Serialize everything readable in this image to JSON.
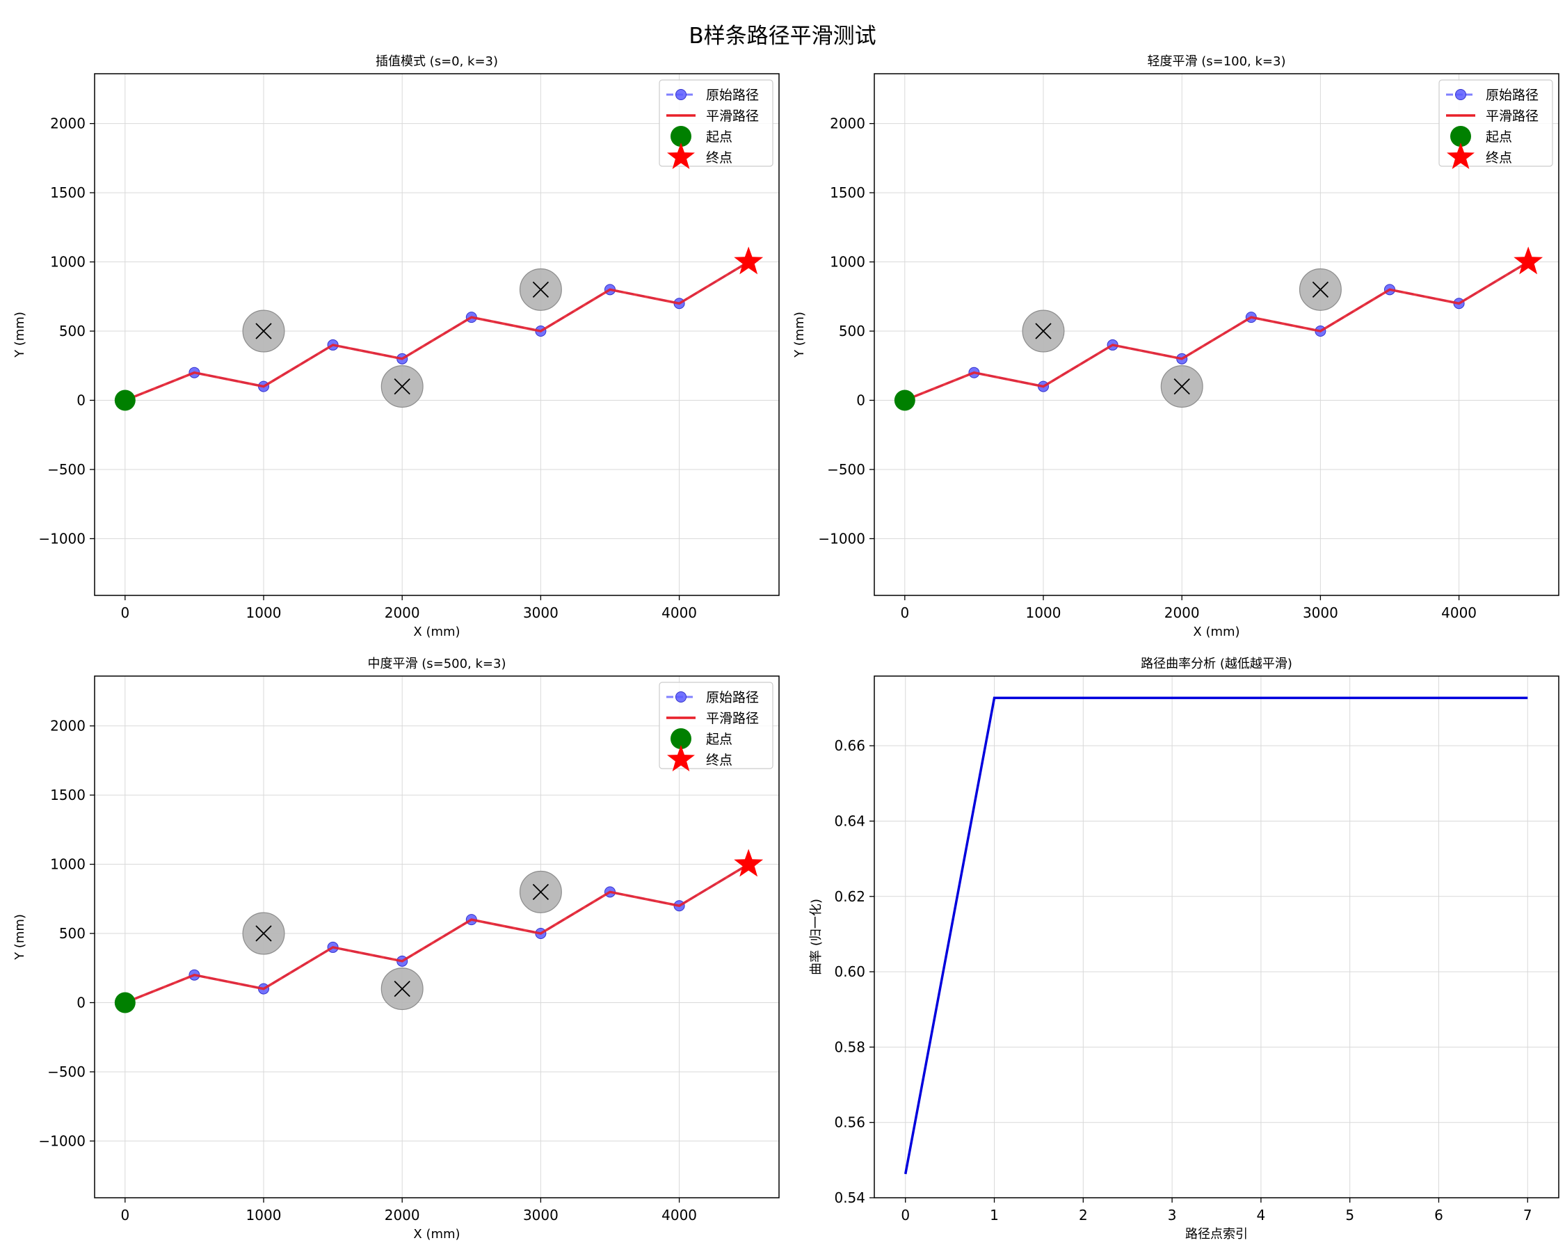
{
  "figure": {
    "title": "B样条路径平滑测试"
  },
  "colors": {
    "original": "#5555ff",
    "original_marker": "#5a5aff",
    "smoothed": "#e8202a",
    "start": "#008000",
    "end": "#ff0000",
    "obstacle_fill": "#b5b5b5",
    "curvature_line": "#0000dd"
  },
  "legend": {
    "original": "原始路径",
    "smoothed": "平滑路径",
    "start": "起点",
    "end": "终点"
  },
  "chart_data": [
    {
      "type": "line",
      "title": "插值模式 (s=0, k=3)",
      "xlabel": "X (mm)",
      "ylabel": "Y (mm)",
      "xlim": [
        -220,
        4720
      ],
      "ylim": [
        -1410,
        2360
      ],
      "xticks": [
        0,
        1000,
        2000,
        3000,
        4000
      ],
      "yticks": [
        -1000,
        -500,
        0,
        500,
        1000,
        1500,
        2000
      ],
      "grid": true,
      "legend_position": "top-right",
      "series": [
        {
          "name": "原始路径",
          "x": [
            0,
            500,
            1000,
            1500,
            2000,
            2500,
            3000,
            3500,
            4000,
            4500
          ],
          "y": [
            0,
            200,
            100,
            400,
            300,
            600,
            500,
            800,
            700,
            1000
          ]
        },
        {
          "name": "平滑路径",
          "x": [
            0,
            500,
            1000,
            1500,
            2000,
            2500,
            3000,
            3500,
            4000,
            4500
          ],
          "y": [
            0,
            200,
            100,
            400,
            300,
            600,
            500,
            800,
            700,
            1000
          ]
        }
      ],
      "start": {
        "x": 0,
        "y": 0
      },
      "end": {
        "x": 4500,
        "y": 1000
      },
      "obstacles": [
        {
          "x": 1000,
          "y": 500,
          "r": 150
        },
        {
          "x": 2000,
          "y": 100,
          "r": 150
        },
        {
          "x": 3000,
          "y": 800,
          "r": 150
        }
      ]
    },
    {
      "type": "line",
      "title": "轻度平滑 (s=100, k=3)",
      "xlabel": "X (mm)",
      "ylabel": "Y (mm)",
      "xlim": [
        -220,
        4720
      ],
      "ylim": [
        -1410,
        2360
      ],
      "xticks": [
        0,
        1000,
        2000,
        3000,
        4000
      ],
      "yticks": [
        -1000,
        -500,
        0,
        500,
        1000,
        1500,
        2000
      ],
      "grid": true,
      "legend_position": "top-right",
      "series": [
        {
          "name": "原始路径",
          "x": [
            0,
            500,
            1000,
            1500,
            2000,
            2500,
            3000,
            3500,
            4000,
            4500
          ],
          "y": [
            0,
            200,
            100,
            400,
            300,
            600,
            500,
            800,
            700,
            1000
          ]
        },
        {
          "name": "平滑路径",
          "x": [
            0,
            500,
            1000,
            1500,
            2000,
            2500,
            3000,
            3500,
            4000,
            4500
          ],
          "y": [
            0,
            200,
            100,
            400,
            300,
            600,
            500,
            800,
            700,
            1000
          ]
        }
      ],
      "start": {
        "x": 0,
        "y": 0
      },
      "end": {
        "x": 4500,
        "y": 1000
      },
      "obstacles": [
        {
          "x": 1000,
          "y": 500,
          "r": 150
        },
        {
          "x": 2000,
          "y": 100,
          "r": 150
        },
        {
          "x": 3000,
          "y": 800,
          "r": 150
        }
      ]
    },
    {
      "type": "line",
      "title": "中度平滑 (s=500, k=3)",
      "xlabel": "X (mm)",
      "ylabel": "Y (mm)",
      "xlim": [
        -220,
        4720
      ],
      "ylim": [
        -1410,
        2360
      ],
      "xticks": [
        0,
        1000,
        2000,
        3000,
        4000
      ],
      "yticks": [
        -1000,
        -500,
        0,
        500,
        1000,
        1500,
        2000
      ],
      "grid": true,
      "legend_position": "top-right",
      "series": [
        {
          "name": "原始路径",
          "x": [
            0,
            500,
            1000,
            1500,
            2000,
            2500,
            3000,
            3500,
            4000,
            4500
          ],
          "y": [
            0,
            200,
            100,
            400,
            300,
            600,
            500,
            800,
            700,
            1000
          ]
        },
        {
          "name": "平滑路径",
          "x": [
            0,
            500,
            1000,
            1500,
            2000,
            2500,
            3000,
            3500,
            4000,
            4500
          ],
          "y": [
            0,
            200,
            100,
            400,
            300,
            600,
            500,
            800,
            700,
            1000
          ]
        }
      ],
      "start": {
        "x": 0,
        "y": 0
      },
      "end": {
        "x": 4500,
        "y": 1000
      },
      "obstacles": [
        {
          "x": 1000,
          "y": 500,
          "r": 150
        },
        {
          "x": 2000,
          "y": 100,
          "r": 150
        },
        {
          "x": 3000,
          "y": 800,
          "r": 150
        }
      ]
    },
    {
      "type": "line",
      "title": "路径曲率分析 (越低越平滑)",
      "xlabel": "路径点索引",
      "ylabel": "曲率 (归一化)",
      "xlim": [
        -0.35,
        7.35
      ],
      "ylim": [
        0.54,
        0.6785
      ],
      "xticks": [
        0,
        1,
        2,
        3,
        4,
        5,
        6,
        7
      ],
      "yticks": [
        0.54,
        0.56,
        0.58,
        0.6,
        0.62,
        0.64,
        0.66
      ],
      "ytick_labels": [
        "0.54",
        "0.56",
        "0.58",
        "0.60",
        "0.62",
        "0.64",
        "0.66"
      ],
      "grid": true,
      "series": [
        {
          "x": [
            0,
            1,
            2,
            3,
            4,
            5,
            6,
            7
          ],
          "y": [
            0.5463,
            0.6727,
            0.6727,
            0.6727,
            0.6727,
            0.6727,
            0.6727,
            0.6727
          ]
        }
      ]
    }
  ]
}
